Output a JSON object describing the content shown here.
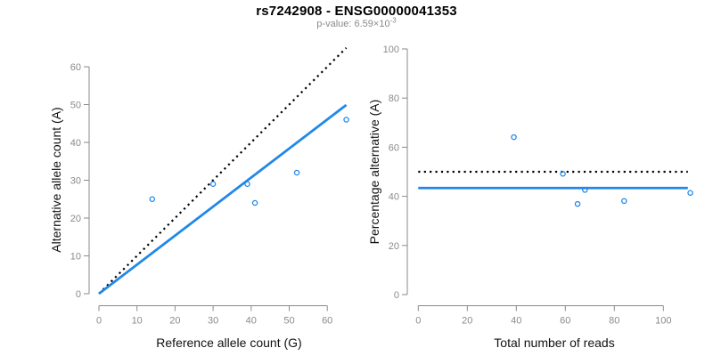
{
  "header": {
    "title": "rs7242908 - ENSG00000041353",
    "p_value_prefix": "p-value: 6.59×10",
    "p_value_exponent": "-3"
  },
  "colors": {
    "accent_blue": "#2188E8",
    "identity_black": "#000000",
    "axis_gray": "#8A8A8A",
    "tick_label_gray": "#8A8A8A",
    "axis_title_color": "#111111",
    "title_color": "#000000",
    "subtitle_color": "#8A8A8A",
    "background": "#FFFFFF"
  },
  "chart_data": [
    {
      "id": "allele-counts-scatter",
      "type": "scatter",
      "title": "",
      "xlabel": "Reference allele count (G)",
      "ylabel": "Alternative allele count (A)",
      "x_ticks": [
        0,
        10,
        20,
        30,
        40,
        50,
        60
      ],
      "y_ticks": [
        0,
        10,
        20,
        30,
        40,
        50,
        60
      ],
      "xlim": [
        0,
        65
      ],
      "ylim": [
        0,
        65
      ],
      "grid": false,
      "legend": "none",
      "points": [
        {
          "x": 14,
          "y": 25
        },
        {
          "x": 30,
          "y": 29
        },
        {
          "x": 39,
          "y": 29
        },
        {
          "x": 41,
          "y": 24
        },
        {
          "x": 52,
          "y": 32
        },
        {
          "x": 65,
          "y": 46
        }
      ],
      "lines": [
        {
          "name": "identity-line",
          "style": "dotted",
          "color": "#000000",
          "x1": 0,
          "y1": 0,
          "x2": 65,
          "y2": 65,
          "width": 2.2
        },
        {
          "name": "fit-line",
          "style": "solid",
          "color": "#2188E8",
          "x1": 0,
          "y1": 0,
          "x2": 65,
          "y2": 49.9,
          "width": 2.8
        }
      ]
    },
    {
      "id": "percentage-vs-reads-scatter",
      "type": "scatter",
      "title": "",
      "xlabel": "Total number of reads",
      "ylabel": "Percentage alternative (A)",
      "x_ticks": [
        0,
        20,
        40,
        60,
        80,
        100
      ],
      "y_ticks": [
        0,
        20,
        40,
        60,
        80,
        100
      ],
      "xlim": [
        0,
        110
      ],
      "ylim": [
        0,
        100
      ],
      "grid": false,
      "legend": "none",
      "points": [
        {
          "x": 39,
          "y": 64.1
        },
        {
          "x": 59,
          "y": 49.2
        },
        {
          "x": 65,
          "y": 36.9
        },
        {
          "x": 68,
          "y": 42.6
        },
        {
          "x": 84,
          "y": 38.1
        },
        {
          "x": 111,
          "y": 41.4
        }
      ],
      "lines": [
        {
          "name": "expected-50pct-line",
          "style": "dotted",
          "color": "#000000",
          "x1": 0,
          "y1": 50,
          "x2": 110,
          "y2": 50,
          "width": 2.2
        },
        {
          "name": "mean-percentage-line",
          "style": "solid",
          "color": "#2188E8",
          "x1": 0,
          "y1": 43.4,
          "x2": 110,
          "y2": 43.4,
          "width": 2.8
        }
      ]
    }
  ]
}
